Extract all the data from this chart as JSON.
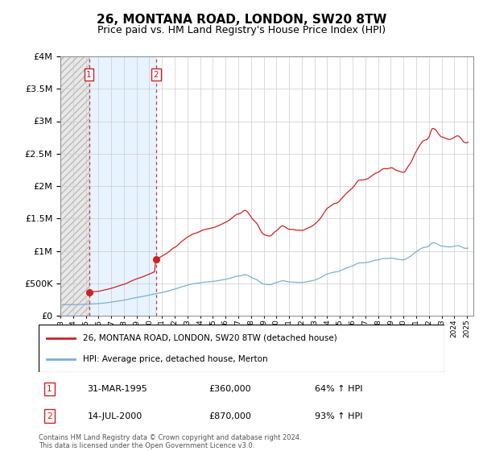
{
  "title": "26, MONTANA ROAD, LONDON, SW20 8TW",
  "subtitle": "Price paid vs. HM Land Registry's House Price Index (HPI)",
  "title_fontsize": 11,
  "subtitle_fontsize": 9,
  "ylim": [
    0,
    4000000
  ],
  "yticks": [
    0,
    500000,
    1000000,
    1500000,
    2000000,
    2500000,
    3000000,
    3500000,
    4000000
  ],
  "x_start_year": 1993.0,
  "x_end_year": 2025.5,
  "hpi_line_color": "#7BAFD4",
  "price_line_color": "#CC2222",
  "transaction1_date": "31-MAR-1995",
  "transaction1_x": 1995.25,
  "transaction1_price": 360000,
  "transaction1_label": "64% ↑ HPI",
  "transaction2_date": "14-JUL-2000",
  "transaction2_x": 2000.54,
  "transaction2_price": 870000,
  "transaction2_label": "93% ↑ HPI",
  "legend_line1": "26, MONTANA ROAD, LONDON, SW20 8TW (detached house)",
  "legend_line2": "HPI: Average price, detached house, Merton",
  "footer": "Contains HM Land Registry data © Crown copyright and database right 2024.\nThis data is licensed under the Open Government Licence v3.0.",
  "hpi_color_band": "#DDEEFF",
  "hatch_fill_color": "#E8E8E8",
  "hatch_edge_color": "#BBBBBB"
}
